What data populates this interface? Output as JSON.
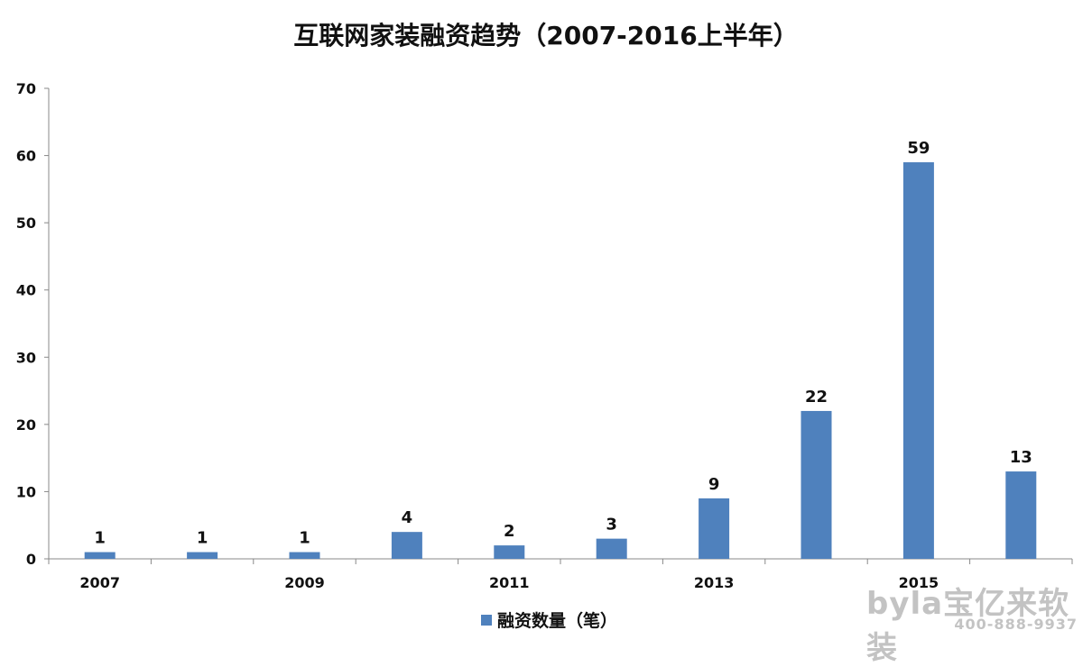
{
  "chart_data": {
    "type": "bar",
    "title": "互联网家装融资趋势（2007-2016上半年）",
    "categories": [
      "2007",
      "2008",
      "2009",
      "2010",
      "2011",
      "2012",
      "2013",
      "2014",
      "2015",
      "2016"
    ],
    "x_tick_labels": [
      "2007",
      "",
      "2009",
      "",
      "2011",
      "",
      "2013",
      "",
      "2015",
      ""
    ],
    "series": [
      {
        "name": "融资数量（笔）",
        "values": [
          1,
          1,
          1,
          4,
          2,
          3,
          9,
          22,
          59,
          13
        ],
        "color": "#4f81bd"
      }
    ],
    "ylim": [
      0,
      70
    ],
    "yticks": [
      0,
      10,
      20,
      30,
      40,
      50,
      60,
      70
    ],
    "grid": false,
    "legend_position": "bottom",
    "xlabel": "",
    "ylabel": ""
  },
  "watermark": {
    "logo_text": "byla宝亿来软装",
    "phone": "400-888-9937"
  }
}
